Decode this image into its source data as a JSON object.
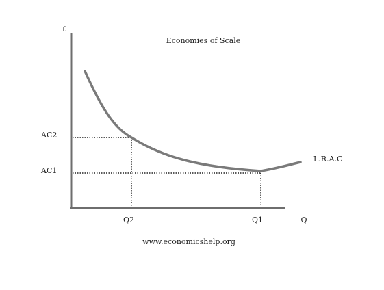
{
  "diagram": {
    "title": "Economies of Scale",
    "y_axis_label": "£",
    "x_axis_label": "Q",
    "curve_label": "L.R.A.C",
    "y_levels": [
      {
        "label": "AC2"
      },
      {
        "label": "AC1"
      }
    ],
    "x_levels": [
      {
        "label": "Q2"
      },
      {
        "label": "Q1"
      }
    ],
    "source": "www.economicshelp.org",
    "colors": {
      "axis": "#6e6e6e",
      "curve": "#7a7a7a",
      "guides": "#222222",
      "text": "#222222"
    }
  }
}
